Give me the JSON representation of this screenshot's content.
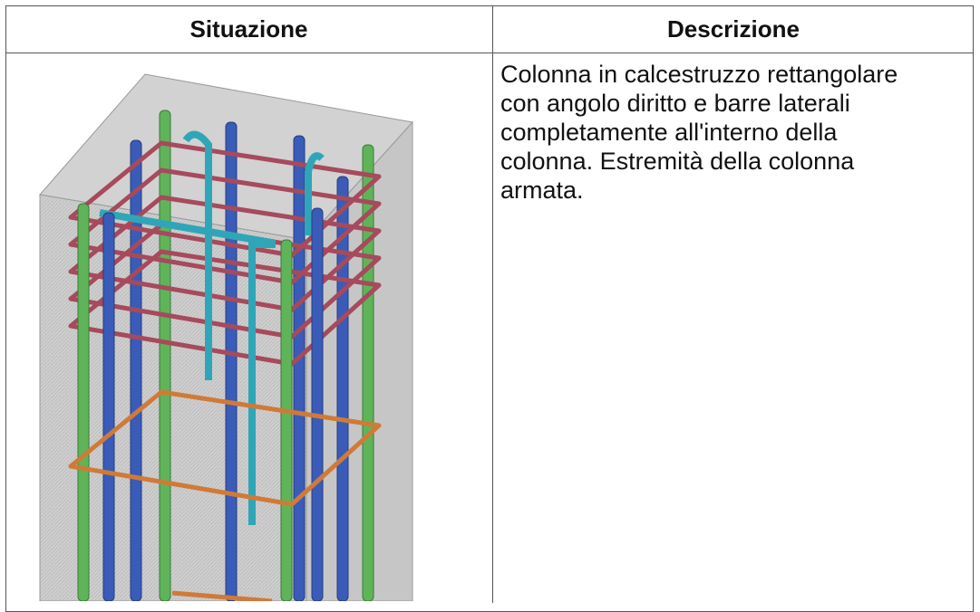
{
  "table": {
    "columns": [
      "Situazione",
      "Descrizione"
    ],
    "rows": [
      {
        "description": [
          "Colonna in calcestruzzo rettangolare",
          "con angolo diritto e barre laterali",
          "completamente all'interno della",
          "colonna. Estremità della colonna",
          "armata."
        ]
      }
    ]
  }
}
